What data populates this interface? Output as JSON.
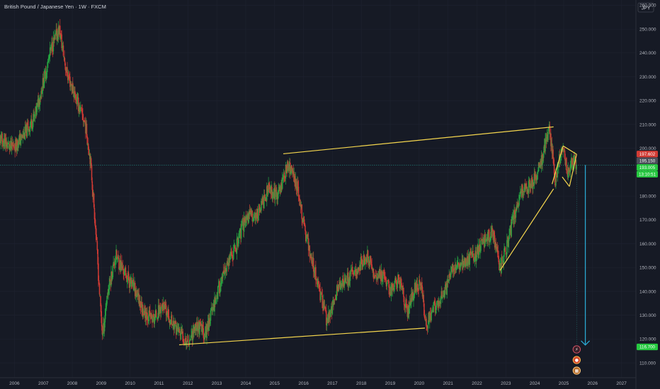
{
  "header": {
    "title": "British Pound / Japanese Yen · 1W · FXCM"
  },
  "currency_label": "JPY",
  "colors": {
    "background": "#161a25",
    "up": "#26a641",
    "down": "#d23b34",
    "trendline": "#f5d64e",
    "projection_arrow": "#2aa7d1",
    "price_line": "#26a69a"
  },
  "price_tags": [
    {
      "text": "197.602",
      "color": "#d23b34",
      "price": 197.6
    },
    {
      "text": "195.150",
      "color": "#4a4e59",
      "price": 195.15
    },
    {
      "text": "193.005",
      "color": "#26c940",
      "price": 193.0
    },
    {
      "text": "13:10:51",
      "color": "#26c940",
      "price": 191.2
    },
    {
      "text": "116.700",
      "color": "#26c940",
      "price": 116.7
    }
  ],
  "event_icons": [
    "lightning-icon",
    "dividend-icon",
    "calendar-icon"
  ],
  "chart_data": {
    "type": "candlestick",
    "title": "British Pound / Japanese Yen · 1W · FXCM",
    "ylabel": "JPY",
    "ylim": [
      103.8,
      262.2
    ],
    "xlim": [
      2005.5,
      2027.5
    ],
    "yticks": [
      110,
      120,
      130,
      140,
      150,
      160,
      170,
      180,
      190,
      200,
      210,
      220,
      230,
      240,
      250,
      260
    ],
    "ytick_labels": [
      "110.000",
      "120.000",
      "130.000",
      "140.000",
      "150.000",
      "160.000",
      "170.000",
      "180.000",
      "190.000",
      "200.000",
      "210.000",
      "220.000",
      "230.000",
      "240.000",
      "250.000",
      "260.000"
    ],
    "xticks": [
      2006,
      2007,
      2008,
      2009,
      2010,
      2011,
      2012,
      2013,
      2014,
      2015,
      2016,
      2017,
      2018,
      2019,
      2020,
      2021,
      2022,
      2023,
      2024,
      2025,
      2026,
      2027
    ],
    "xtick_labels": [
      "2006",
      "2007",
      "2008",
      "2009",
      "2010",
      "2011",
      "2012",
      "2013",
      "2014",
      "2015",
      "2016",
      "2017",
      "2018",
      "2019",
      "2020",
      "2021",
      "2022",
      "2023",
      "2024",
      "2025",
      "2026",
      "2027"
    ],
    "price_path": [
      [
        2005.5,
        204
      ],
      [
        2005.9,
        200
      ],
      [
        2006.3,
        205
      ],
      [
        2006.7,
        213
      ],
      [
        2007.0,
        228
      ],
      [
        2007.3,
        243
      ],
      [
        2007.55,
        250
      ],
      [
        2007.8,
        232
      ],
      [
        2008.1,
        222
      ],
      [
        2008.45,
        210
      ],
      [
        2008.62,
        196
      ],
      [
        2008.8,
        168
      ],
      [
        2008.95,
        138
      ],
      [
        2009.05,
        121
      ],
      [
        2009.2,
        138
      ],
      [
        2009.5,
        155
      ],
      [
        2009.8,
        148
      ],
      [
        2010.1,
        142
      ],
      [
        2010.45,
        132
      ],
      [
        2010.8,
        128
      ],
      [
        2011.1,
        134
      ],
      [
        2011.4,
        128
      ],
      [
        2011.75,
        122
      ],
      [
        2012.0,
        119
      ],
      [
        2012.3,
        126
      ],
      [
        2012.6,
        122
      ],
      [
        2012.95,
        137
      ],
      [
        2013.35,
        150
      ],
      [
        2013.7,
        160
      ],
      [
        2014.0,
        171
      ],
      [
        2014.4,
        172
      ],
      [
        2014.8,
        183
      ],
      [
        2015.1,
        180
      ],
      [
        2015.45,
        193
      ],
      [
        2015.75,
        186
      ],
      [
        2016.05,
        165
      ],
      [
        2016.4,
        148
      ],
      [
        2016.6,
        138
      ],
      [
        2016.8,
        128
      ],
      [
        2016.95,
        131
      ],
      [
        2017.2,
        142
      ],
      [
        2017.6,
        146
      ],
      [
        2017.95,
        151
      ],
      [
        2018.2,
        155
      ],
      [
        2018.5,
        146
      ],
      [
        2018.8,
        147
      ],
      [
        2019.0,
        140
      ],
      [
        2019.3,
        145
      ],
      [
        2019.6,
        132
      ],
      [
        2019.9,
        143
      ],
      [
        2020.1,
        141
      ],
      [
        2020.22,
        125
      ],
      [
        2020.5,
        133
      ],
      [
        2020.9,
        140
      ],
      [
        2021.2,
        151
      ],
      [
        2021.6,
        152
      ],
      [
        2021.9,
        155
      ],
      [
        2022.3,
        162
      ],
      [
        2022.55,
        165
      ],
      [
        2022.8,
        150
      ],
      [
        2023.0,
        157
      ],
      [
        2023.3,
        172
      ],
      [
        2023.6,
        183
      ],
      [
        2023.9,
        185
      ],
      [
        2024.2,
        193
      ],
      [
        2024.5,
        208
      ],
      [
        2024.6,
        200
      ],
      [
        2024.7,
        185
      ],
      [
        2024.85,
        196
      ],
      [
        2025.0,
        199
      ],
      [
        2025.15,
        190
      ],
      [
        2025.35,
        196
      ],
      [
        2025.45,
        193
      ]
    ],
    "last_price": 193.005,
    "trendlines": [
      {
        "name": "upper-resistance",
        "from": [
          2015.3,
          197.7
        ],
        "to": [
          2024.65,
          209.0
        ]
      },
      {
        "name": "lower-support",
        "from": [
          2011.7,
          117.6
        ],
        "to": [
          2020.2,
          124.6
        ]
      },
      {
        "name": "rising-support",
        "from": [
          2022.8,
          148.8
        ],
        "to": [
          2024.65,
          183.0
        ]
      },
      {
        "name": "flag-top",
        "from": [
          2024.98,
          201.0
        ],
        "to": [
          2025.45,
          197.5
        ]
      },
      {
        "name": "flag-bottom",
        "from": [
          2024.95,
          188.0
        ],
        "to": [
          2025.2,
          184.0
        ]
      }
    ],
    "projection": {
      "from": [
        2025.75,
        193
      ],
      "to": [
        2025.75,
        117.5
      ],
      "target": 116.7
    }
  }
}
